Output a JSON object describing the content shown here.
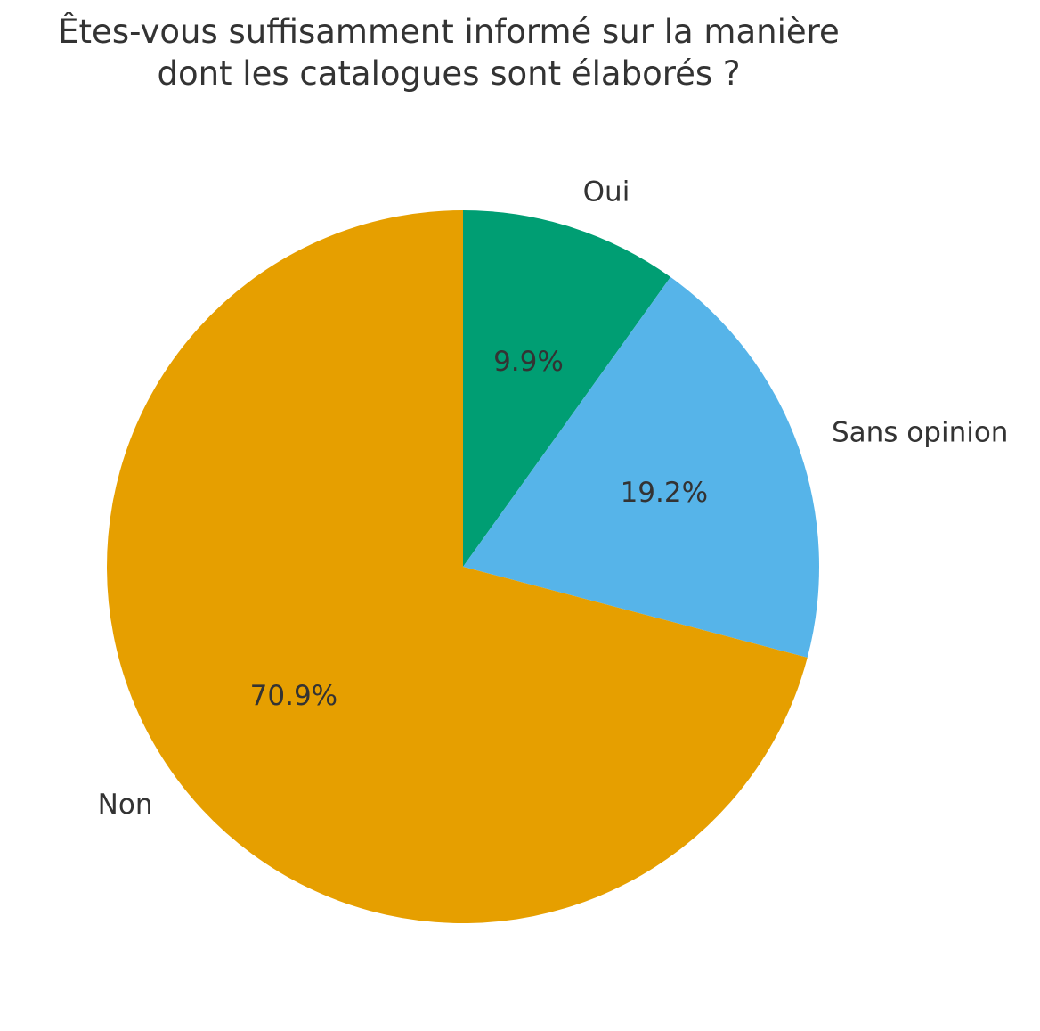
{
  "chart_data": {
    "type": "pie",
    "title_lines": [
      "Êtes-vous suffisamment informé sur la manière",
      "dont les catalogues sont élaborés ?"
    ],
    "slices": [
      {
        "label": "Oui",
        "value": 9.9,
        "pct_label": "9.9%",
        "color": "#009E73"
      },
      {
        "label": "Sans opinion",
        "value": 19.2,
        "pct_label": "19.2%",
        "color": "#56B4E9"
      },
      {
        "label": "Non",
        "value": 70.9,
        "pct_label": "70.9%",
        "color": "#E69F00"
      }
    ],
    "start_angle": "top, clockwise"
  }
}
